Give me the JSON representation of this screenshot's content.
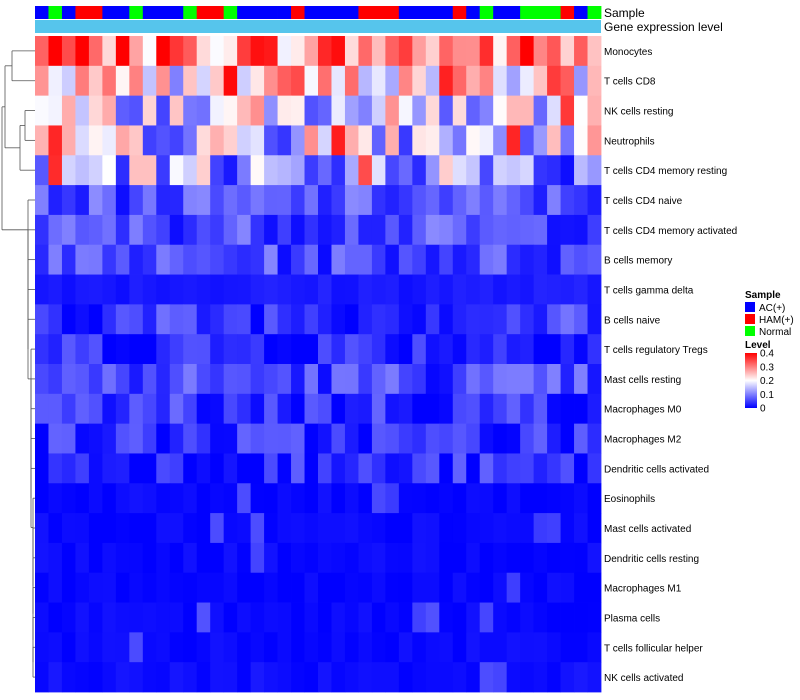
{
  "chart_data": {
    "type": "heatmap",
    "title": "",
    "annotations": [
      {
        "name": "Sample",
        "type": "categorical"
      },
      {
        "name": "Gene expression level",
        "type": "continuous"
      }
    ],
    "sample_groups": [
      "AC",
      "NOR",
      "AC",
      "HAM",
      "HAM",
      "AC",
      "AC",
      "NOR",
      "AC",
      "AC",
      "AC",
      "NOR",
      "HAM",
      "HAM",
      "NOR",
      "AC",
      "AC",
      "AC",
      "AC",
      "HAM",
      "AC",
      "AC",
      "AC",
      "AC",
      "HAM",
      "HAM",
      "HAM",
      "AC",
      "AC",
      "AC",
      "AC",
      "HAM",
      "AC",
      "NOR",
      "AC",
      "AC",
      "NOR",
      "NOR",
      "NOR",
      "HAM",
      "AC",
      "NOR"
    ],
    "rows": [
      {
        "label": "Monocytes",
        "base": 0.3
      },
      {
        "label": "T cells CD8",
        "base": 0.22
      },
      {
        "label": "NK cells resting",
        "base": 0.17
      },
      {
        "label": "Neutrophils",
        "base": 0.16
      },
      {
        "label": "T cells CD4 memory resting",
        "base": 0.13
      },
      {
        "label": "T cells CD4 naive",
        "base": 0.06
      },
      {
        "label": "T cells CD4 memory activated",
        "base": 0.06
      },
      {
        "label": "B cells memory",
        "base": 0.055
      },
      {
        "label": "T cells gamma delta",
        "base": 0.02
      },
      {
        "label": "B cells naive",
        "base": 0.045
      },
      {
        "label": "T cells regulatory  Tregs",
        "base": 0.035
      },
      {
        "label": "Mast cells resting",
        "base": 0.055
      },
      {
        "label": "Macrophages M0",
        "base": 0.04
      },
      {
        "label": "Macrophages M2",
        "base": 0.035
      },
      {
        "label": "Dendritic cells activated",
        "base": 0.03
      },
      {
        "label": "Eosinophils",
        "base": 0.005
      },
      {
        "label": "Mast cells activated",
        "base": 0.005
      },
      {
        "label": "Dendritic cells resting",
        "base": 0.005
      },
      {
        "label": "Macrophages M1",
        "base": 0.005
      },
      {
        "label": "Plasma cells",
        "base": 0.005
      },
      {
        "label": "T cells follicular helper",
        "base": 0.005
      },
      {
        "label": "NK cells activated",
        "base": 0.01
      }
    ],
    "color_scale": {
      "min": 0,
      "max": 0.4,
      "low": "#0000ff",
      "mid": "#ffffff",
      "high": "#ff0000",
      "midpoint": 0.2
    },
    "gene_expression_color": "#56c5ec"
  },
  "legend": {
    "sample_title": "Sample",
    "sample_items": [
      {
        "key": "AC",
        "label": "AC(+)",
        "color": "#0000ff"
      },
      {
        "key": "HAM",
        "label": "HAM(+)",
        "color": "#ff0000"
      },
      {
        "key": "NOR",
        "label": "Normal",
        "color": "#00ff00"
      }
    ],
    "level_title": "Level",
    "level_ticks": [
      "0.4",
      "0.3",
      "0.2",
      "0.1",
      "0"
    ]
  }
}
